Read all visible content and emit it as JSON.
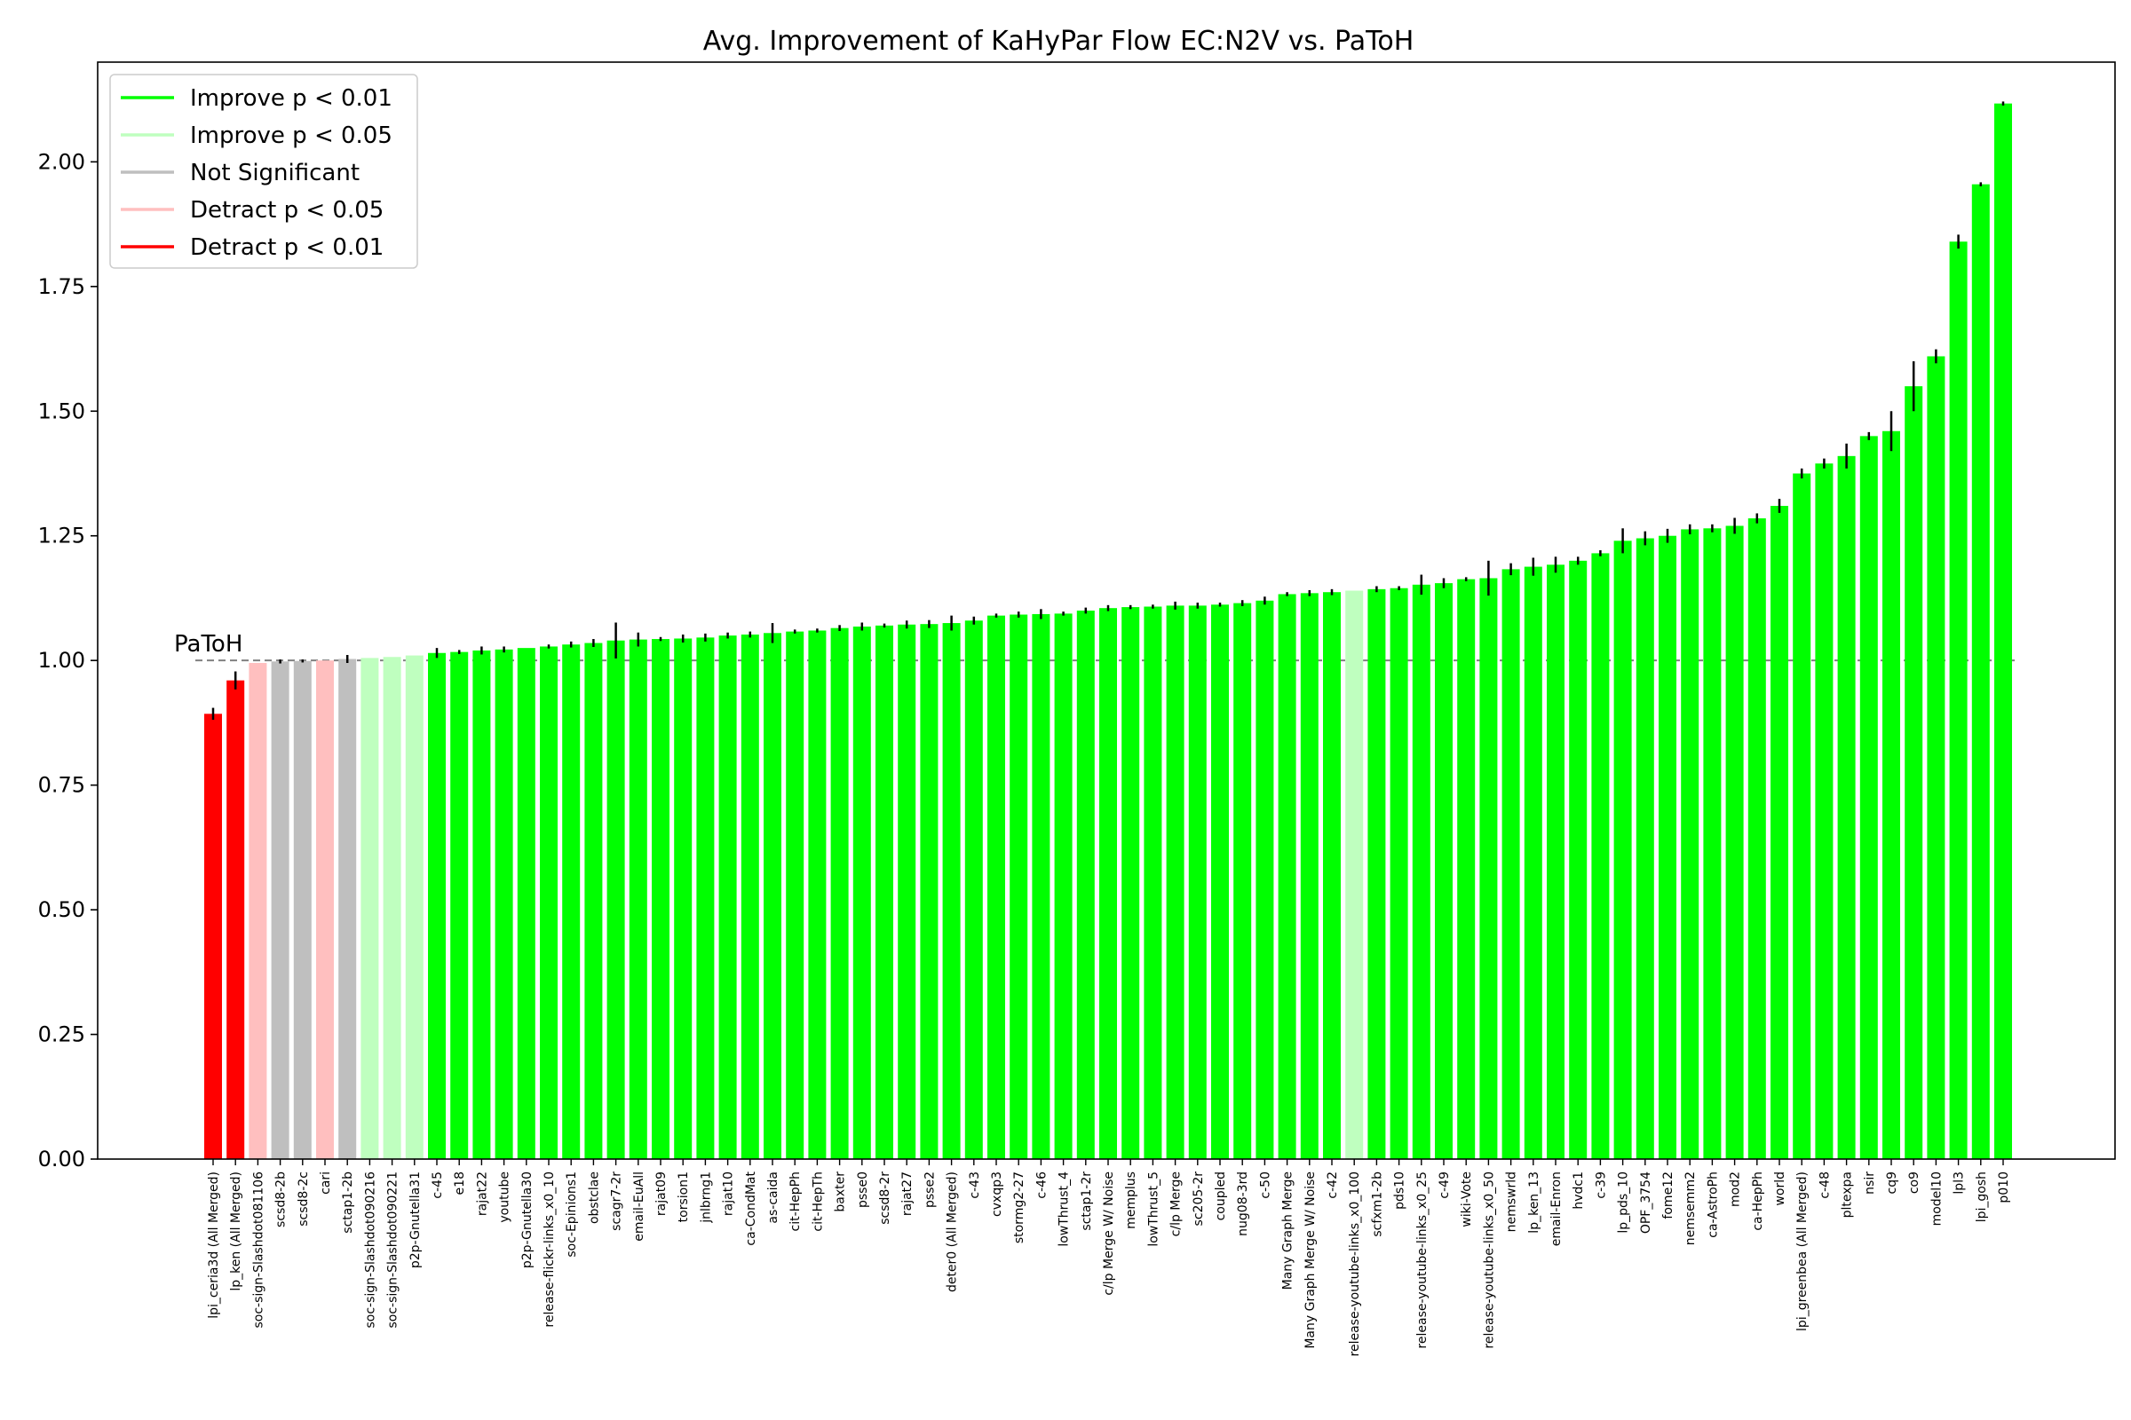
{
  "chart_data": {
    "type": "bar",
    "title": "Avg. Improvement of KaHyPar Flow EC:N2V vs. PaToH",
    "xlabel": "",
    "ylabel": "",
    "ylim": [
      0,
      2.2
    ],
    "yticks": [
      "0.00",
      "0.25",
      "0.50",
      "0.75",
      "1.00",
      "1.25",
      "1.50",
      "1.75",
      "2.00"
    ],
    "reference_line": {
      "value": 1.0,
      "label": "PaToH",
      "color": "#808080"
    },
    "grid": false,
    "legend_position": "top-left",
    "legend": [
      {
        "label": "Improve p < 0.01",
        "color": "#00ff00"
      },
      {
        "label": "Improve p < 0.05",
        "color": "#bfffbf"
      },
      {
        "label": "Not Significant",
        "color": "#bfbfbf"
      },
      {
        "label": "Detract p < 0.05",
        "color": "#ffbfbf"
      },
      {
        "label": "Detract p < 0.01",
        "color": "#ff0000"
      }
    ],
    "colors": {
      "improve_01": "#00ff00",
      "improve_05": "#bfffbf",
      "not_significant": "#bfbfbf",
      "detract_05": "#ffbfbf",
      "detract_01": "#ff0000",
      "error_bar": "#000000"
    },
    "categories": [
      "lpi_ceria3d (All Merged)",
      "lp_ken (All Merged)",
      "soc-sign-Slashdot081106",
      "scsd8-2b",
      "scsd8-2c",
      "cari",
      "sctap1-2b",
      "soc-sign-Slashdot090216",
      "soc-sign-Slashdot090221",
      "p2p-Gnutella31",
      "c-45",
      "e18",
      "rajat22",
      "youtube",
      "p2p-Gnutella30",
      "release-flickr-links_x0_10",
      "soc-Epinions1",
      "obstclae",
      "scagr7-2r",
      "email-EuAll",
      "rajat09",
      "torsion1",
      "jnlbrng1",
      "rajat10",
      "ca-CondMat",
      "as-caida",
      "cit-HepPh",
      "cit-HepTh",
      "baxter",
      "psse0",
      "scsd8-2r",
      "rajat27",
      "psse2",
      "deter0 (All Merged)",
      "c-43",
      "cvxqp3",
      "stormg2-27",
      "c-46",
      "lowThrust_4",
      "sctap1-2r",
      "c/lp Merge W/ Noise",
      "memplus",
      "lowThrust_5",
      "c/lp Merge",
      "sc205-2r",
      "coupled",
      "nug08-3rd",
      "c-50",
      "Many Graph Merge",
      "Many Graph Merge W/ Noise",
      "c-42",
      "release-youtube-links_x0_100",
      "scfxm1-2b",
      "pds10",
      "release-youtube-links_x0_25",
      "c-49",
      "wiki-Vote",
      "release-youtube-links_x0_50",
      "nemswrld",
      "lp_ken_13",
      "email-Enron",
      "hvdc1",
      "c-39",
      "lp_pds_10",
      "OPF_3754",
      "fome12",
      "nemsemm2",
      "ca-AstroPh",
      "mod2",
      "ca-HepPh",
      "world",
      "lpi_greenbea (All Merged)",
      "c-48",
      "pltexpa",
      "nsir",
      "cq9",
      "co9",
      "model10",
      "lpl3",
      "lpi_gosh",
      "p010"
    ],
    "values": [
      0.893,
      0.96,
      0.995,
      0.998,
      0.999,
      1.0,
      1.003,
      1.005,
      1.007,
      1.01,
      1.015,
      1.017,
      1.02,
      1.022,
      1.025,
      1.028,
      1.032,
      1.035,
      1.04,
      1.042,
      1.043,
      1.044,
      1.046,
      1.05,
      1.052,
      1.055,
      1.058,
      1.06,
      1.065,
      1.068,
      1.07,
      1.072,
      1.073,
      1.075,
      1.08,
      1.09,
      1.092,
      1.093,
      1.094,
      1.1,
      1.105,
      1.107,
      1.108,
      1.11,
      1.11,
      1.112,
      1.115,
      1.12,
      1.133,
      1.135,
      1.137,
      1.14,
      1.143,
      1.145,
      1.152,
      1.155,
      1.163,
      1.165,
      1.183,
      1.188,
      1.192,
      1.2,
      1.215,
      1.24,
      1.245,
      1.25,
      1.263,
      1.265,
      1.27,
      1.285,
      1.31,
      1.375,
      1.395,
      1.41,
      1.45,
      1.46,
      1.55,
      1.61,
      1.84,
      1.955,
      2.117
    ],
    "errors": [
      0.012,
      0.018,
      0.0,
      0.004,
      0.003,
      0.0,
      0.008,
      0.0,
      0.0,
      0.0,
      0.01,
      0.004,
      0.008,
      0.006,
      0.0,
      0.004,
      0.006,
      0.008,
      0.036,
      0.014,
      0.004,
      0.008,
      0.008,
      0.006,
      0.006,
      0.02,
      0.004,
      0.004,
      0.006,
      0.008,
      0.004,
      0.008,
      0.008,
      0.015,
      0.008,
      0.004,
      0.006,
      0.01,
      0.004,
      0.006,
      0.006,
      0.004,
      0.004,
      0.008,
      0.006,
      0.004,
      0.006,
      0.008,
      0.004,
      0.006,
      0.006,
      0.0,
      0.006,
      0.004,
      0.02,
      0.01,
      0.004,
      0.035,
      0.012,
      0.018,
      0.016,
      0.008,
      0.006,
      0.025,
      0.014,
      0.014,
      0.01,
      0.008,
      0.016,
      0.01,
      0.014,
      0.01,
      0.01,
      0.025,
      0.008,
      0.04,
      0.05,
      0.014,
      0.014,
      0.004,
      0.004
    ],
    "significance": [
      "detract_01",
      "detract_01",
      "detract_05",
      "not_significant",
      "not_significant",
      "detract_05",
      "not_significant",
      "improve_05",
      "improve_05",
      "improve_05",
      "improve_01",
      "improve_01",
      "improve_01",
      "improve_01",
      "improve_01",
      "improve_01",
      "improve_01",
      "improve_01",
      "improve_01",
      "improve_01",
      "improve_01",
      "improve_01",
      "improve_01",
      "improve_01",
      "improve_01",
      "improve_01",
      "improve_01",
      "improve_01",
      "improve_01",
      "improve_01",
      "improve_01",
      "improve_01",
      "improve_01",
      "improve_01",
      "improve_01",
      "improve_01",
      "improve_01",
      "improve_01",
      "improve_01",
      "improve_01",
      "improve_01",
      "improve_01",
      "improve_01",
      "improve_01",
      "improve_01",
      "improve_01",
      "improve_01",
      "improve_01",
      "improve_01",
      "improve_01",
      "improve_01",
      "improve_05",
      "improve_01",
      "improve_01",
      "improve_01",
      "improve_01",
      "improve_01",
      "improve_01",
      "improve_01",
      "improve_01",
      "improve_01",
      "improve_01",
      "improve_01",
      "improve_01",
      "improve_01",
      "improve_01",
      "improve_01",
      "improve_01",
      "improve_01",
      "improve_01",
      "improve_01",
      "improve_01",
      "improve_01",
      "improve_01",
      "improve_01",
      "improve_01",
      "improve_01",
      "improve_01",
      "improve_01",
      "improve_01",
      "improve_01"
    ]
  }
}
